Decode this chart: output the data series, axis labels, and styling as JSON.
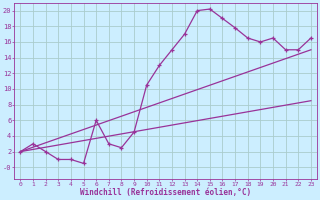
{
  "bg_color": "#cceeff",
  "grid_color": "#aacccc",
  "line_color": "#993399",
  "xlabel": "Windchill (Refroidissement éolien,°C)",
  "xlim": [
    -0.5,
    23.5
  ],
  "ylim": [
    -1.5,
    21
  ],
  "yticks": [
    0,
    2,
    4,
    6,
    8,
    10,
    12,
    14,
    16,
    18,
    20
  ],
  "ytick_labels": [
    "-0",
    "2",
    "4",
    "6",
    "8",
    "10",
    "12",
    "14",
    "16",
    "18",
    "20"
  ],
  "xticks": [
    0,
    1,
    2,
    3,
    4,
    5,
    6,
    7,
    8,
    9,
    10,
    11,
    12,
    13,
    14,
    15,
    16,
    17,
    18,
    19,
    20,
    21,
    22,
    23
  ],
  "line1_x": [
    0,
    1,
    2,
    3,
    4,
    5,
    6,
    7,
    8,
    9,
    10,
    11,
    12,
    13,
    14,
    15,
    16,
    17,
    18,
    19,
    20,
    21,
    22,
    23
  ],
  "line1_y": [
    2.0,
    3.0,
    2.0,
    1.0,
    1.0,
    0.5,
    6.0,
    3.0,
    2.5,
    4.5,
    10.5,
    13.0,
    15.0,
    17.0,
    20.0,
    20.2,
    19.0,
    17.8,
    16.5,
    16.0,
    16.5,
    15.0,
    15.0,
    16.5
  ],
  "line2_x": [
    0,
    23
  ],
  "line2_y": [
    2.0,
    15.0
  ],
  "line3_x": [
    0,
    23
  ],
  "line3_y": [
    2.0,
    8.5
  ]
}
